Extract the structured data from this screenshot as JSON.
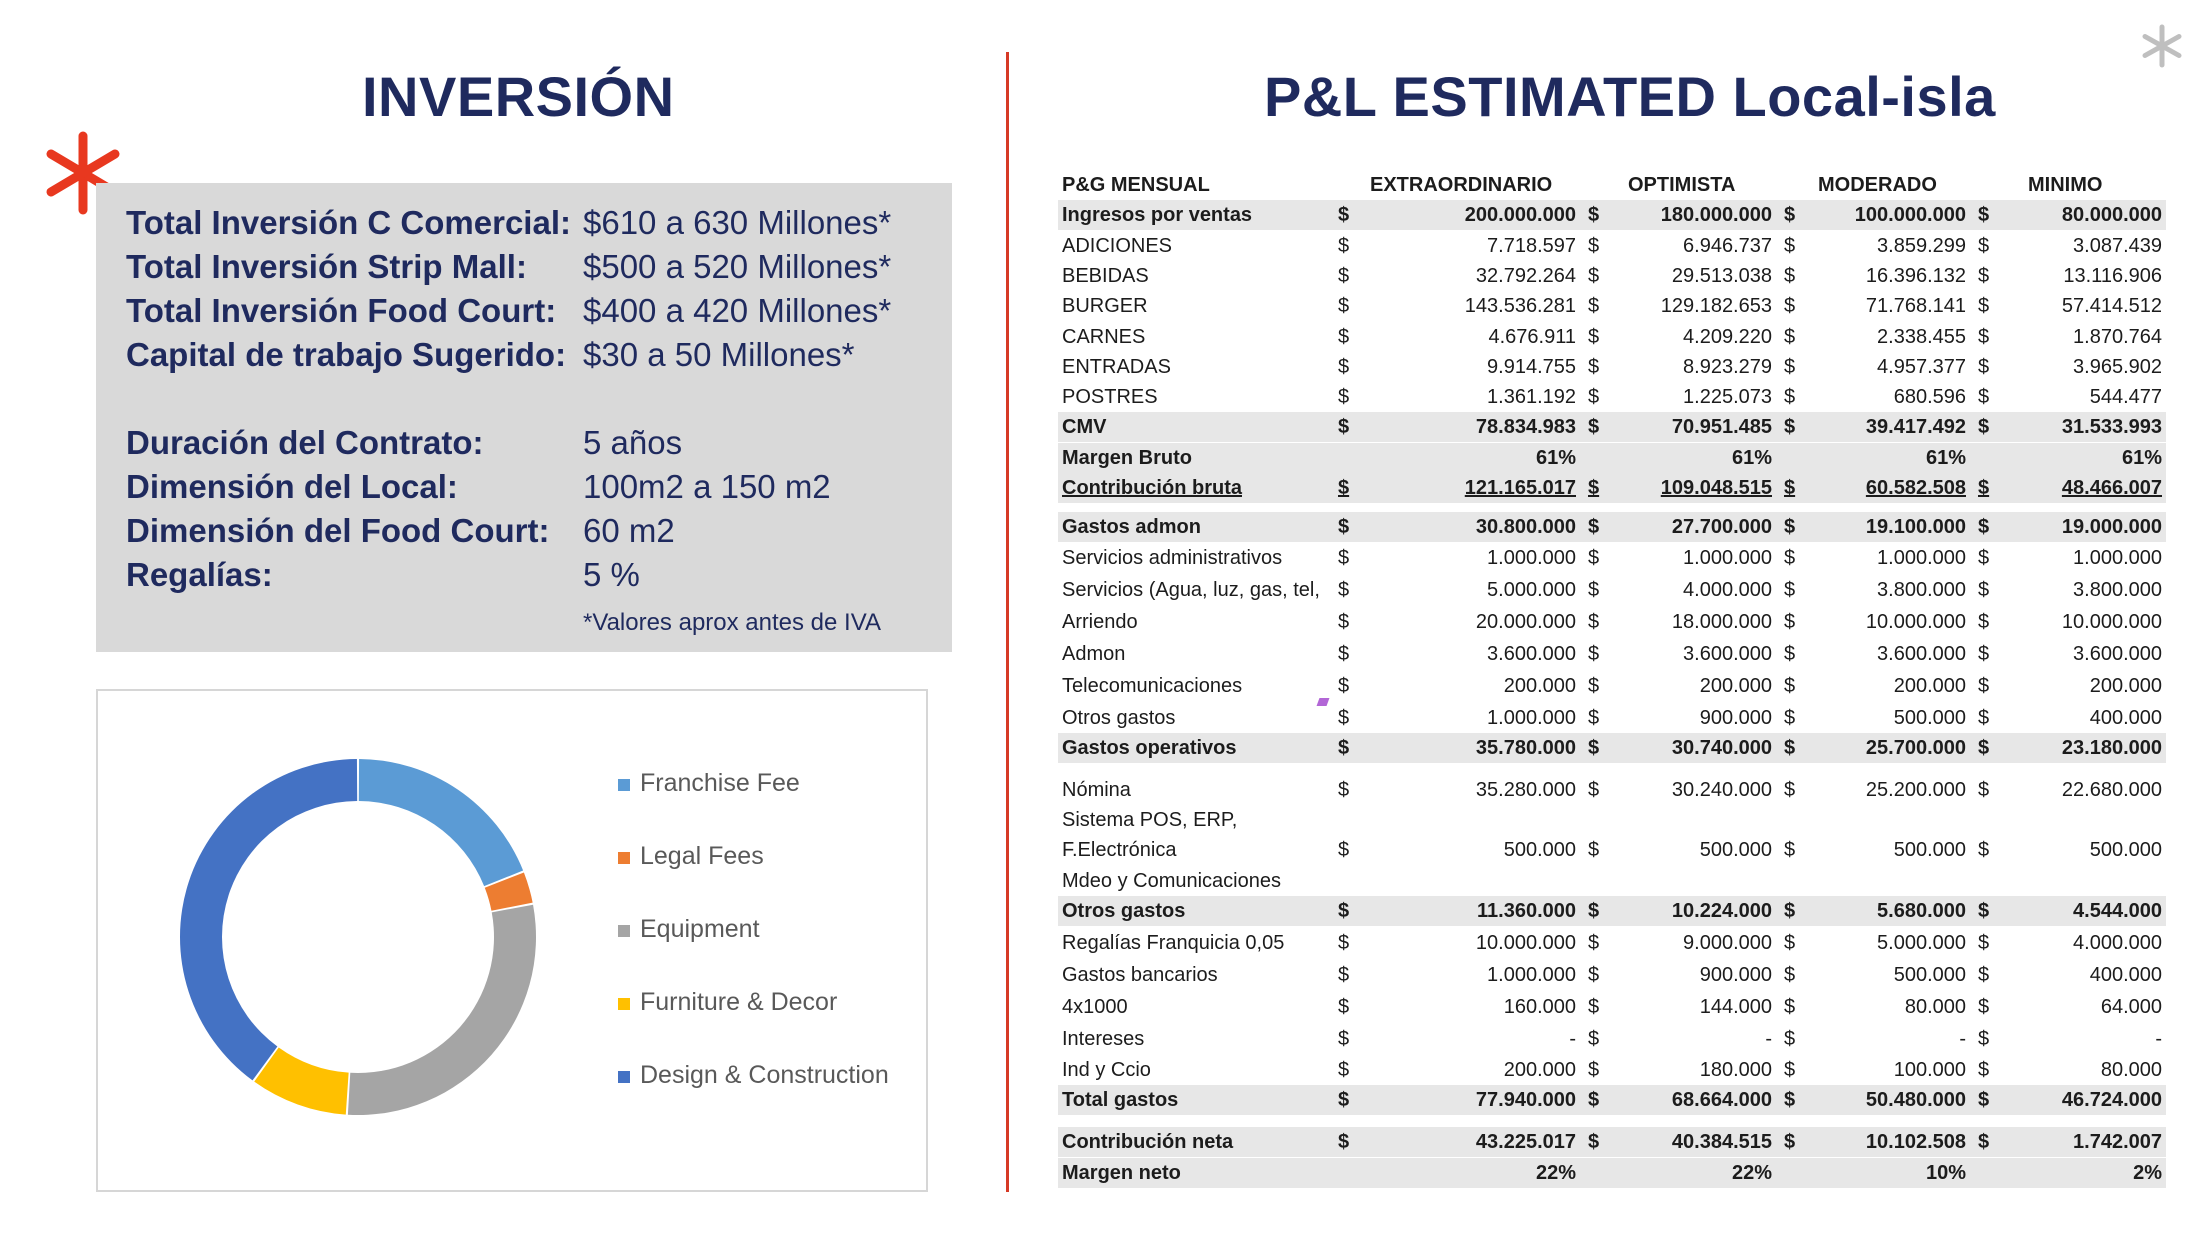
{
  "titles": {
    "left": "INVERSIÓN",
    "right": "P&L ESTIMATED Local-isla"
  },
  "investment": {
    "rows": [
      {
        "label": "Total Inversión  C Comercial:",
        "value": "$610 a 630 Millones*"
      },
      {
        "label": "Total Inversión   Strip Mall:",
        "value": "$500 a 520 Millones*"
      },
      {
        "label": "Total Inversión Food Court:",
        "value": "$400 a 420 Millones*"
      },
      {
        "label": "Capital de trabajo Sugerido:",
        "value": "$30 a 50 Millones*"
      },
      {
        "label": "Duración del Contrato:",
        "value": "5 años"
      },
      {
        "label": "Dimensión del Local:",
        "value": "100m2 a 150 m2"
      },
      {
        "label": "Dimensión del Food Court:",
        "value": "60 m2"
      },
      {
        "label": "Regalías:",
        "value": "5 %"
      }
    ],
    "note": "*Valores aprox antes de IVA"
  },
  "chart_data": {
    "type": "pie",
    "donut": true,
    "categories": [
      "Franchise Fee",
      "Legal Fees",
      "Equipment",
      "Furniture & Decor",
      "Design & Construction"
    ],
    "values": [
      19,
      3,
      29,
      9,
      40
    ],
    "colors": [
      "#5b9bd5",
      "#ed7d31",
      "#a5a5a5",
      "#ffc000",
      "#4472c4"
    ],
    "legend": "right"
  },
  "pl": {
    "headers": [
      "P&G MENSUAL",
      "EXTRAORDINARIO",
      "OPTIMISTA",
      "MODERADO",
      "MINIMO"
    ],
    "currency": "$",
    "rows": [
      {
        "label": "Ingresos por ventas",
        "values": [
          "200.000.000",
          "180.000.000",
          "100.000.000",
          "80.000.000"
        ],
        "bold": true,
        "shaded": true,
        "cur": true
      },
      {
        "label": "ADICIONES",
        "values": [
          "7.718.597",
          "6.946.737",
          "3.859.299",
          "3.087.439"
        ],
        "cur": true
      },
      {
        "label": "BEBIDAS",
        "values": [
          "32.792.264",
          "29.513.038",
          "16.396.132",
          "13.116.906"
        ],
        "cur": true
      },
      {
        "label": "BURGER",
        "values": [
          "143.536.281",
          "129.182.653",
          "71.768.141",
          "57.414.512"
        ],
        "cur": true
      },
      {
        "label": "CARNES",
        "values": [
          "4.676.911",
          "4.209.220",
          "2.338.455",
          "1.870.764"
        ],
        "cur": true
      },
      {
        "label": "ENTRADAS",
        "values": [
          "9.914.755",
          "8.923.279",
          "4.957.377",
          "3.965.902"
        ],
        "cur": true
      },
      {
        "label": "POSTRES",
        "values": [
          "1.361.192",
          "1.225.073",
          "680.596",
          "544.477"
        ],
        "cur": true
      },
      {
        "label": "CMV",
        "values": [
          "78.834.983",
          "70.951.485",
          "39.417.492",
          "31.533.993"
        ],
        "bold": true,
        "shaded": true,
        "cur": true
      },
      {
        "label": "Margen Bruto",
        "values": [
          "61%",
          "61%",
          "61%",
          "61%"
        ],
        "bold": true,
        "shaded": true,
        "cur": false
      },
      {
        "label": "Contribución bruta",
        "values": [
          "121.165.017",
          "109.048.515",
          "60.582.508",
          "48.466.007"
        ],
        "bold": true,
        "shaded": true,
        "underline": true,
        "cur": true
      },
      {
        "label": "Gastos admon",
        "values": [
          "30.800.000",
          "27.700.000",
          "19.100.000",
          "19.000.000"
        ],
        "bold": true,
        "shaded": true,
        "cur": true
      },
      {
        "label": "Servicios administrativos",
        "values": [
          "1.000.000",
          "1.000.000",
          "1.000.000",
          "1.000.000"
        ],
        "cur": true
      },
      {
        "label": "Servicios (Agua, luz, gas, tel,",
        "values": [
          "5.000.000",
          "4.000.000",
          "3.800.000",
          "3.800.000"
        ],
        "cur": true
      },
      {
        "label": "Arriendo",
        "values": [
          "20.000.000",
          "18.000.000",
          "10.000.000",
          "10.000.000"
        ],
        "cur": true
      },
      {
        "label": "Admon",
        "values": [
          "3.600.000",
          "3.600.000",
          "3.600.000",
          "3.600.000"
        ],
        "cur": true
      },
      {
        "label": "Telecomunicaciones",
        "values": [
          "200.000",
          "200.000",
          "200.000",
          "200.000"
        ],
        "cur": true
      },
      {
        "label": "Otros gastos",
        "values": [
          "1.000.000",
          "900.000",
          "500.000",
          "400.000"
        ],
        "cur": true
      },
      {
        "label": "Gastos operativos",
        "values": [
          "35.780.000",
          "30.740.000",
          "25.700.000",
          "23.180.000"
        ],
        "bold": true,
        "shaded": true,
        "cur": true
      },
      {
        "label": "Nómina",
        "values": [
          "35.280.000",
          "30.240.000",
          "25.200.000",
          "22.680.000"
        ],
        "cur": true
      },
      {
        "label": "Sistema POS, ERP,",
        "values": [
          "",
          "",
          "",
          ""
        ],
        "cur": false
      },
      {
        "label": "F.Electrónica",
        "values": [
          "500.000",
          "500.000",
          "500.000",
          "500.000"
        ],
        "cur": true
      },
      {
        "label": "Mdeo y Comunicaciones",
        "values": [
          "",
          "",
          "",
          ""
        ],
        "cur": false
      },
      {
        "label": "Otros gastos",
        "values": [
          "11.360.000",
          "10.224.000",
          "5.680.000",
          "4.544.000"
        ],
        "bold": true,
        "shaded": true,
        "cur": true
      },
      {
        "label": "Regalías Franquicia 0,05",
        "values": [
          "10.000.000",
          "9.000.000",
          "5.000.000",
          "4.000.000"
        ],
        "cur": true
      },
      {
        "label": "Gastos bancarios",
        "values": [
          "1.000.000",
          "900.000",
          "500.000",
          "400.000"
        ],
        "cur": true
      },
      {
        "label": "4x1000",
        "values": [
          "160.000",
          "144.000",
          "80.000",
          "64.000"
        ],
        "cur": true
      },
      {
        "label": "Intereses",
        "values": [
          "-",
          "-",
          "-",
          "-"
        ],
        "cur": true
      },
      {
        "label": "Ind y Ccio",
        "values": [
          "200.000",
          "180.000",
          "100.000",
          "80.000"
        ],
        "cur": true
      },
      {
        "label": "Total gastos",
        "values": [
          "77.940.000",
          "68.664.000",
          "50.480.000",
          "46.724.000"
        ],
        "bold": true,
        "shaded": true,
        "cur": true
      },
      {
        "label": "Contribución neta",
        "values": [
          "43.225.017",
          "40.384.515",
          "10.102.508",
          "1.742.007"
        ],
        "bold": true,
        "shaded": true,
        "cur": true
      },
      {
        "label": "Margen neto",
        "values": [
          "22%",
          "22%",
          "10%",
          "2%"
        ],
        "bold": true,
        "shaded": true,
        "cur": false
      }
    ]
  }
}
